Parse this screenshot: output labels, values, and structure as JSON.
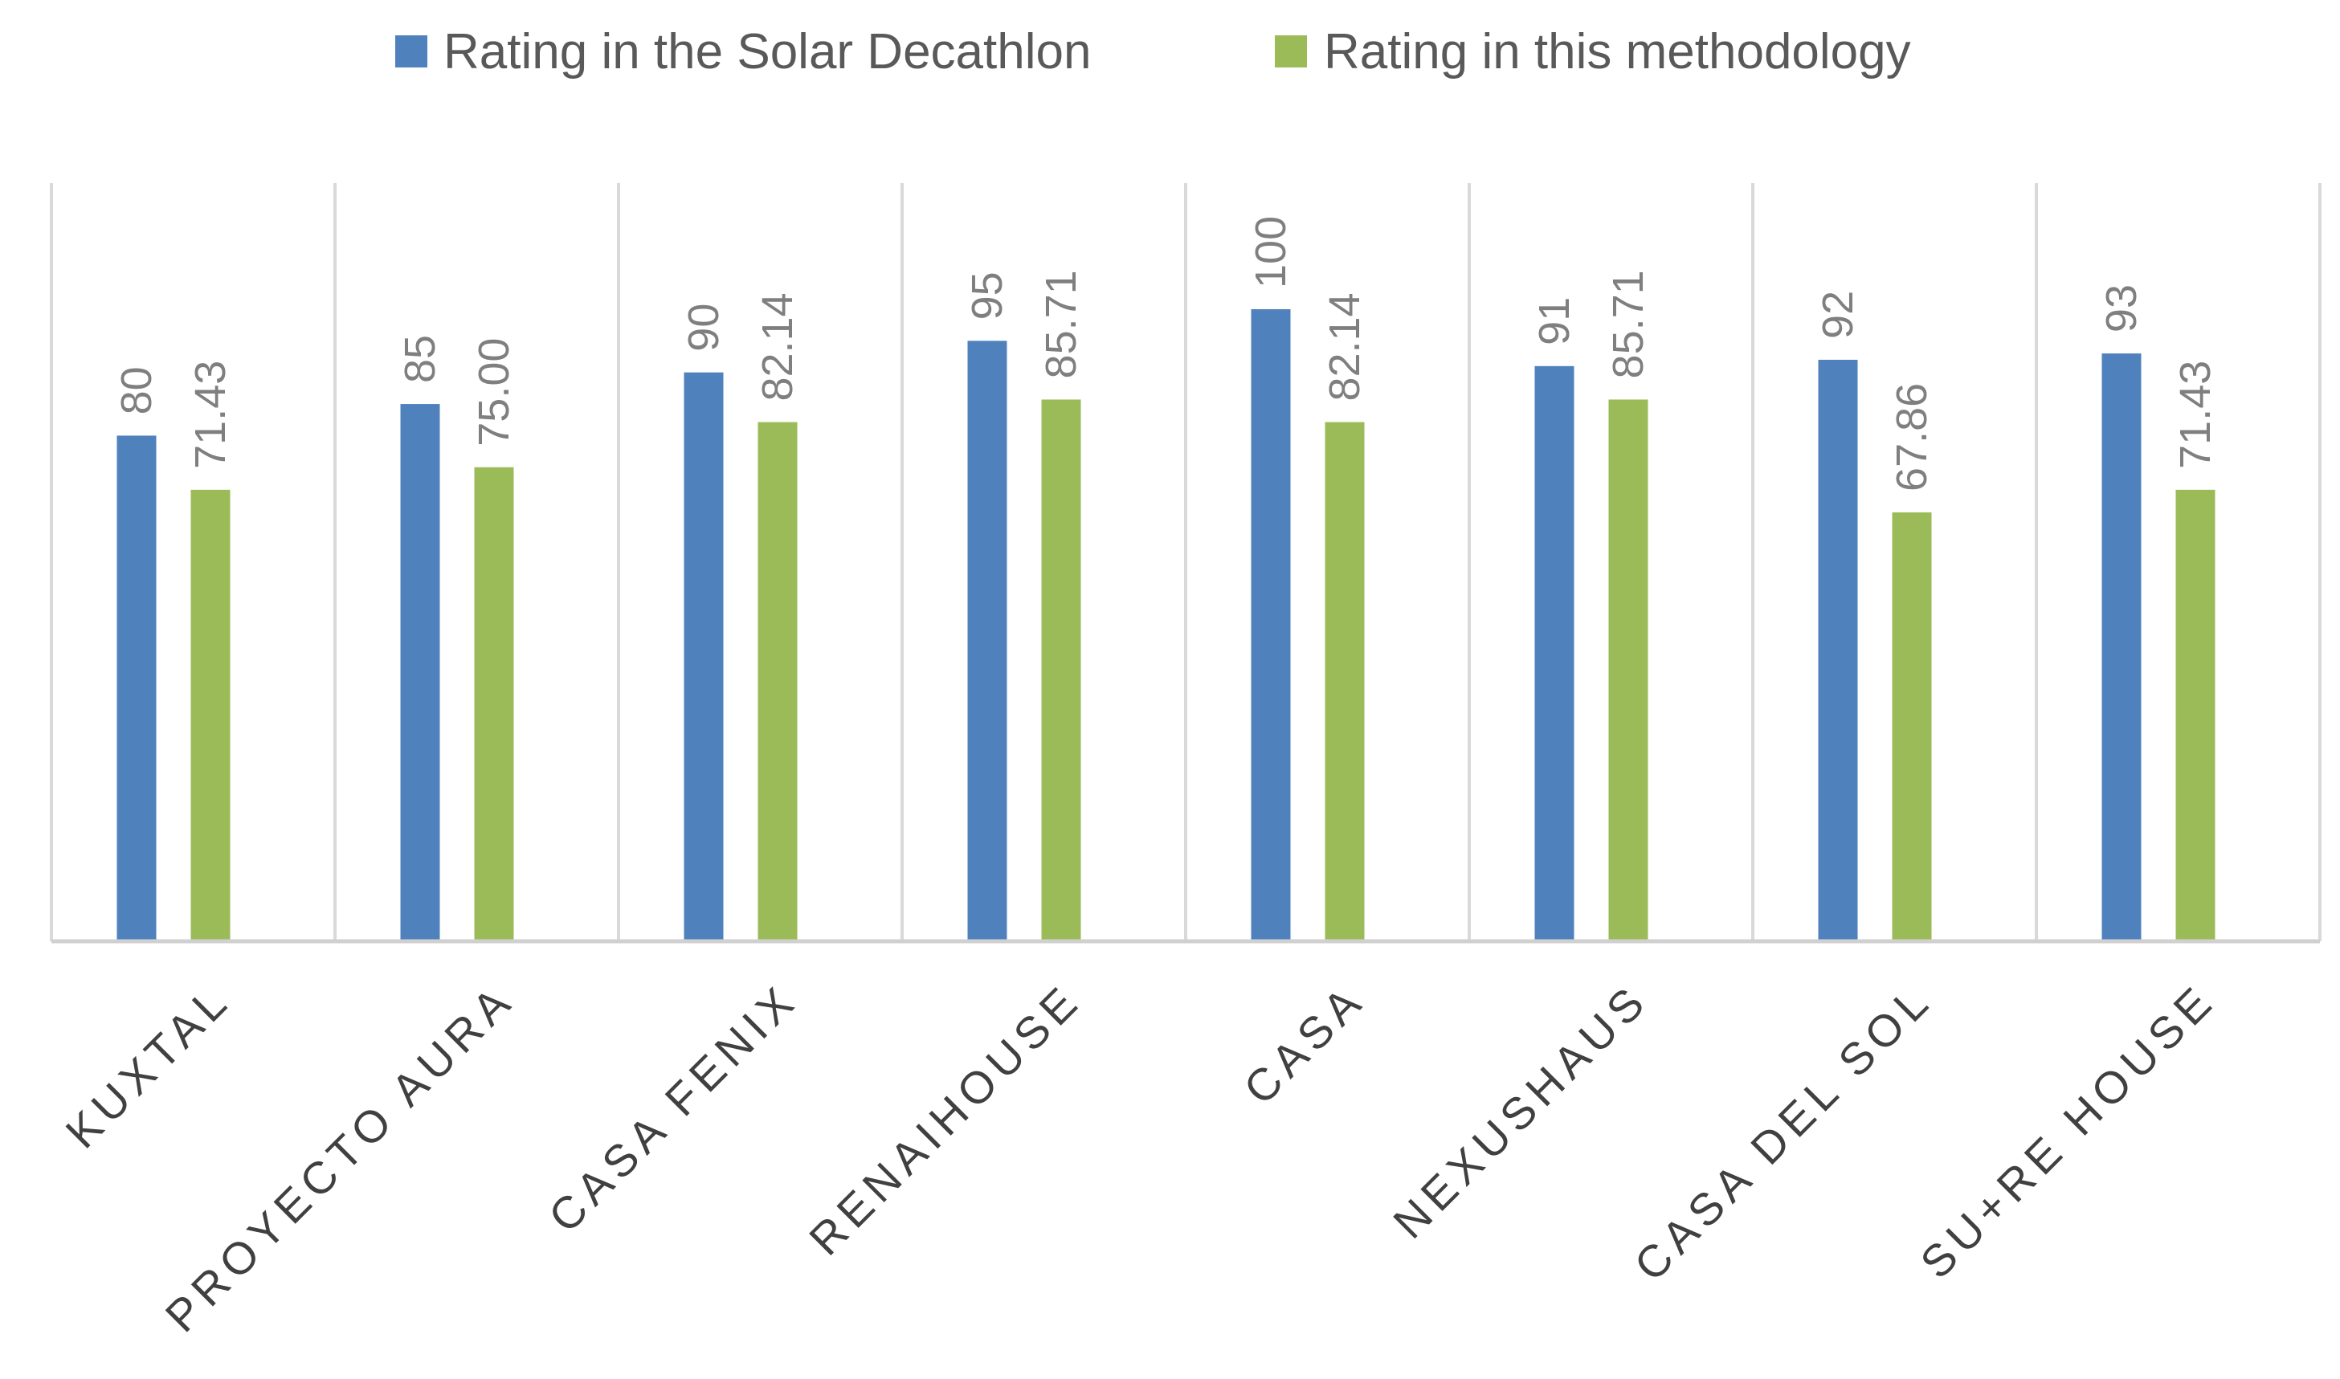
{
  "chart_data": {
    "type": "bar",
    "title": "",
    "xlabel": "",
    "ylabel": "",
    "ylim": [
      0,
      118
    ],
    "grid": false,
    "legend_position": "top-center",
    "categories": [
      "KUXTAL",
      "PROYECTO AURA",
      "CASA FENIX",
      "RENAIHOUSE",
      "CASA",
      "NEXUSHAUS",
      "CASA DEL SOL",
      "SU+RE HOUSE"
    ],
    "series": [
      {
        "name": "Rating in the Solar Decathlon",
        "color": "#4f81bd",
        "values": [
          80,
          85,
          90,
          95,
          100,
          91,
          92,
          93
        ],
        "labels": [
          "80",
          "85",
          "90",
          "95",
          "100",
          "91",
          "92",
          "93"
        ]
      },
      {
        "name": "Rating in this methodology",
        "color": "#9bbb59",
        "values": [
          71.43,
          75.0,
          82.14,
          85.71,
          82.14,
          85.71,
          67.86,
          71.43
        ],
        "labels": [
          "71.43",
          "75.00",
          "82.14",
          "85.71",
          "82.14",
          "85.71",
          "67.86",
          "71.43"
        ]
      }
    ]
  }
}
